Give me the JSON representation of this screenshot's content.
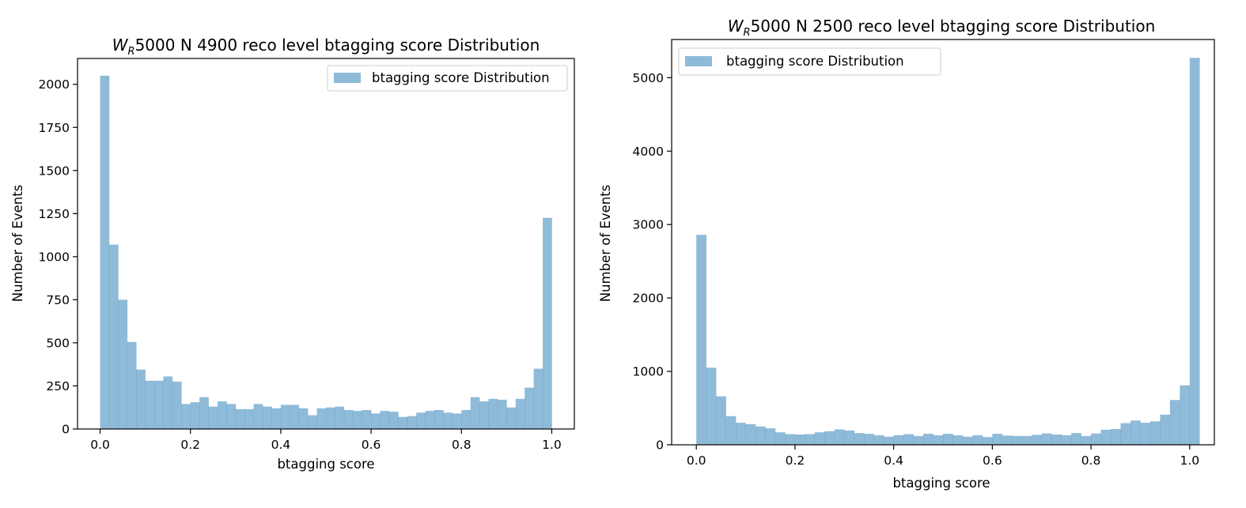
{
  "chart_data": [
    {
      "type": "bar",
      "title_main": "W",
      "title_sub": "R",
      "title_rest": "5000 N 4900 reco level btagging score Distribution",
      "xlabel": "btagging score",
      "ylabel": "Number of Events",
      "xlim": [
        -0.05,
        1.05
      ],
      "ylim": [
        0,
        2150
      ],
      "xticks": [
        "0.0",
        "0.2",
        "0.4",
        "0.6",
        "0.8",
        "1.0"
      ],
      "yticks": [
        "0",
        "250",
        "500",
        "750",
        "1000",
        "1250",
        "1500",
        "1750",
        "2000"
      ],
      "legend": {
        "label": "btagging score Distribution",
        "placement": "top-right"
      },
      "color": "#1f77b4",
      "bin_start": 0.0,
      "bin_width": 0.02,
      "values": [
        2050,
        1070,
        750,
        505,
        345,
        280,
        280,
        305,
        275,
        145,
        155,
        185,
        130,
        160,
        145,
        115,
        115,
        145,
        130,
        120,
        140,
        140,
        120,
        80,
        120,
        125,
        130,
        110,
        105,
        110,
        90,
        105,
        100,
        70,
        75,
        95,
        105,
        110,
        95,
        90,
        110,
        185,
        160,
        175,
        170,
        125,
        175,
        240,
        350,
        1225
      ]
    },
    {
      "type": "bar",
      "title_main": "W",
      "title_sub": "R",
      "title_rest": "5000 N 2500 reco level btagging score Distribution",
      "xlabel": "btagging score",
      "ylabel": "Number of Events",
      "xlim": [
        -0.05,
        1.05
      ],
      "ylim": [
        0,
        5520
      ],
      "xticks": [
        "0.0",
        "0.2",
        "0.4",
        "0.6",
        "0.8",
        "1.0"
      ],
      "yticks": [
        "0",
        "1000",
        "2000",
        "3000",
        "4000",
        "5000"
      ],
      "legend": {
        "label": "btagging score Distribution",
        "placement": "top-left"
      },
      "color": "#1f77b4",
      "bin_start": 0.0,
      "bin_width": 0.02,
      "values": [
        2860,
        1050,
        660,
        390,
        300,
        280,
        250,
        225,
        170,
        145,
        140,
        145,
        170,
        185,
        210,
        195,
        160,
        150,
        130,
        110,
        130,
        145,
        120,
        150,
        130,
        150,
        130,
        110,
        130,
        105,
        150,
        125,
        120,
        120,
        135,
        155,
        140,
        130,
        160,
        120,
        155,
        205,
        215,
        295,
        330,
        300,
        320,
        410,
        610,
        810,
        5270
      ]
    }
  ]
}
